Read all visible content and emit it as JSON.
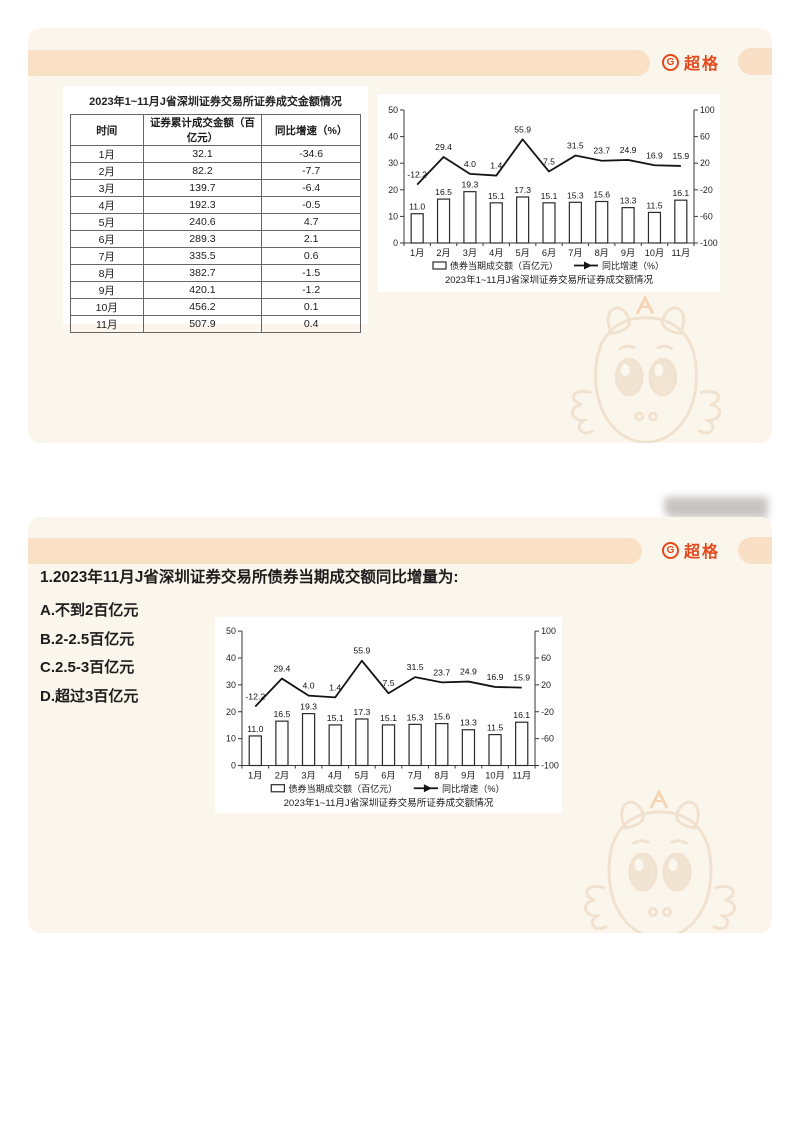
{
  "brand": {
    "logo_letter": "G",
    "logo_text": "超格",
    "accent_color": "#e2491c",
    "band_color": "#fae0c4",
    "card_color": "#fbf6ec"
  },
  "slide1": {
    "table": {
      "title": "2023年1~11月J省深圳证券交易所证券成交金额情况",
      "headers": [
        "时间",
        "证券累计成交金额（百亿元）",
        "同比增速（%）"
      ],
      "rows": [
        [
          "1月",
          "32.1",
          "-34.6"
        ],
        [
          "2月",
          "82.2",
          "-7.7"
        ],
        [
          "3月",
          "139.7",
          "-6.4"
        ],
        [
          "4月",
          "192.3",
          "-0.5"
        ],
        [
          "5月",
          "240.6",
          "4.7"
        ],
        [
          "6月",
          "289.3",
          "2.1"
        ],
        [
          "7月",
          "335.5",
          "0.6"
        ],
        [
          "8月",
          "382.7",
          "-1.5"
        ],
        [
          "9月",
          "420.1",
          "-1.2"
        ],
        [
          "10月",
          "456.2",
          "0.1"
        ],
        [
          "11月",
          "507.9",
          "0.4"
        ]
      ]
    }
  },
  "slide2": {
    "question": "1.2023年11月J省深圳证券交易所债券当期成交额同比增量为:",
    "options": [
      "A.不到2百亿元",
      "B.2-2.5百亿元",
      "C.2.5-3百亿元",
      "D.超过3百亿元"
    ]
  },
  "chart_data": {
    "type": "bar+line",
    "title": "2023年1~11月J省深圳证券交易所证券成交额情况",
    "categories": [
      "1月",
      "2月",
      "3月",
      "4月",
      "5月",
      "6月",
      "7月",
      "8月",
      "9月",
      "10月",
      "11月"
    ],
    "series": [
      {
        "name": "债券当期成交额（百亿元）",
        "type": "bar",
        "axis": "left",
        "values": [
          11.0,
          16.5,
          19.3,
          15.1,
          17.3,
          15.1,
          15.3,
          15.6,
          13.3,
          11.5,
          16.1
        ],
        "labels": [
          "11.0",
          "16.5",
          "19.3",
          "15.1",
          "17.3",
          "15.1",
          "15.3",
          "15.6",
          "13.3",
          "11.5",
          "16.1"
        ]
      },
      {
        "name": "同比增速（%）",
        "type": "line",
        "axis": "right",
        "values": [
          -12.2,
          29.4,
          4.0,
          1.4,
          55.9,
          7.5,
          31.5,
          23.7,
          24.9,
          16.9,
          15.9
        ],
        "labels": [
          "-12.2",
          "29.4",
          "4.0",
          "1.4",
          "55.9",
          "7.5",
          "31.5",
          "23.7",
          "24.9",
          "16.9",
          "15.9"
        ]
      }
    ],
    "left_axis": {
      "min": 0,
      "max": 50,
      "ticks": [
        0,
        10,
        20,
        30,
        40,
        50
      ]
    },
    "right_axis": {
      "min": -100,
      "max": 100,
      "ticks": [
        100,
        60,
        20,
        -20,
        -60,
        -100
      ]
    },
    "legend_position": "bottom",
    "grid": false
  }
}
